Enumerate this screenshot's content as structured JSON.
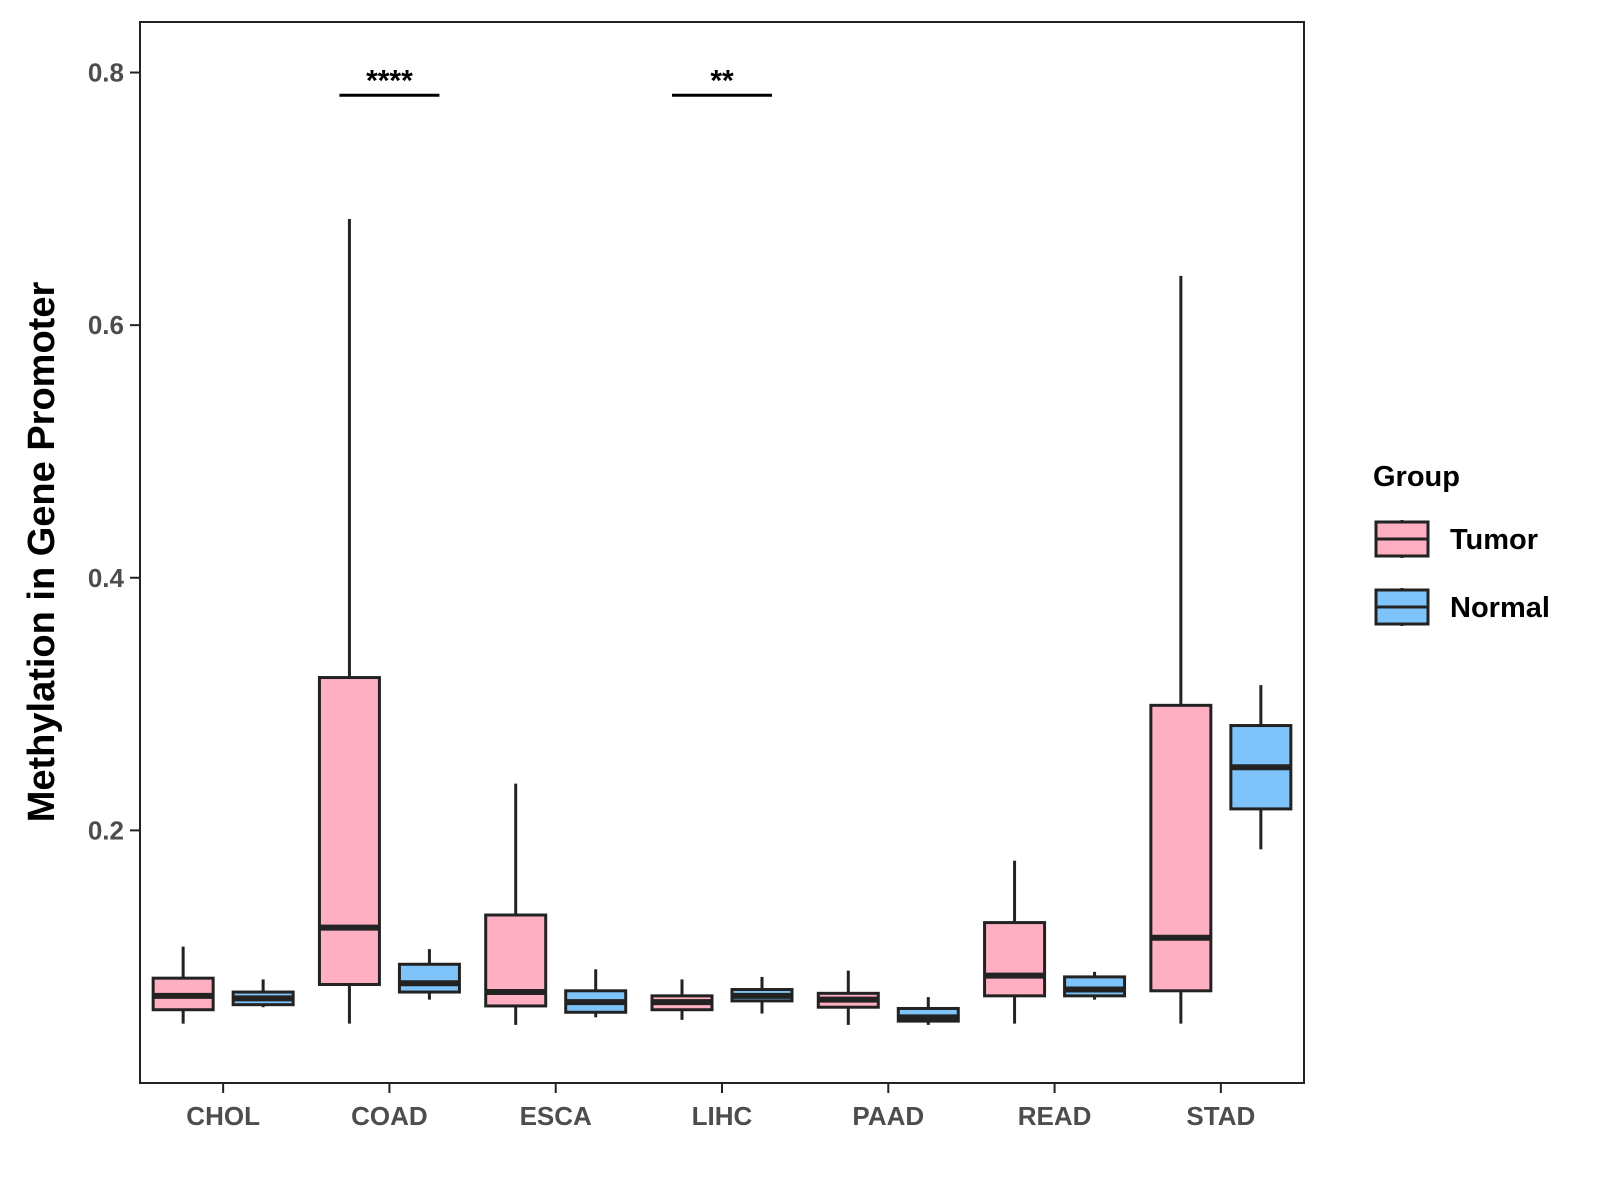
{
  "chart_data": {
    "type": "boxplot",
    "title": "",
    "xlabel": "",
    "ylabel": "Methylation in Gene Promoter",
    "ylim": [
      0.0,
      0.84
    ],
    "yticks": [
      0.2,
      0.4,
      0.6,
      0.8
    ],
    "ytick_labels": [
      "0.2",
      "0.4",
      "0.6",
      "0.8"
    ],
    "grid": false,
    "legend_position": "right",
    "legend": {
      "title": "Group",
      "entries": [
        {
          "label": "Tumor",
          "color": "#FFAFC2"
        },
        {
          "label": "Normal",
          "color": "#7EC4FA"
        }
      ]
    },
    "categories": [
      "CHOL",
      "COAD",
      "ESCA",
      "LIHC",
      "PAAD",
      "READ",
      "STAD"
    ],
    "series": [
      {
        "name": "Tumor",
        "color": "#FFAFC2",
        "boxes": [
          {
            "min": 0.047,
            "q1": 0.058,
            "median": 0.069,
            "q3": 0.083,
            "max": 0.108
          },
          {
            "min": 0.047,
            "q1": 0.078,
            "median": 0.123,
            "q3": 0.321,
            "max": 0.684
          },
          {
            "min": 0.046,
            "q1": 0.061,
            "median": 0.072,
            "q3": 0.133,
            "max": 0.237
          },
          {
            "min": 0.05,
            "q1": 0.058,
            "median": 0.064,
            "q3": 0.069,
            "max": 0.082
          },
          {
            "min": 0.046,
            "q1": 0.06,
            "median": 0.066,
            "q3": 0.071,
            "max": 0.089
          },
          {
            "min": 0.047,
            "q1": 0.069,
            "median": 0.085,
            "q3": 0.127,
            "max": 0.176
          },
          {
            "min": 0.047,
            "q1": 0.073,
            "median": 0.115,
            "q3": 0.299,
            "max": 0.639
          }
        ]
      },
      {
        "name": "Normal",
        "color": "#7EC4FA",
        "boxes": [
          {
            "min": 0.06,
            "q1": 0.062,
            "median": 0.067,
            "q3": 0.072,
            "max": 0.082
          },
          {
            "min": 0.066,
            "q1": 0.072,
            "median": 0.079,
            "q3": 0.094,
            "max": 0.106
          },
          {
            "min": 0.052,
            "q1": 0.056,
            "median": 0.064,
            "q3": 0.073,
            "max": 0.09
          },
          {
            "min": 0.055,
            "q1": 0.065,
            "median": 0.069,
            "q3": 0.074,
            "max": 0.084
          },
          {
            "min": 0.046,
            "q1": 0.049,
            "median": 0.052,
            "q3": 0.059,
            "max": 0.068
          },
          {
            "min": 0.066,
            "q1": 0.069,
            "median": 0.074,
            "q3": 0.084,
            "max": 0.088
          },
          {
            "min": 0.185,
            "q1": 0.217,
            "median": 0.25,
            "q3": 0.283,
            "max": 0.315
          }
        ]
      }
    ],
    "annotations": [
      {
        "category": "COAD",
        "label": "****",
        "y": 0.782
      },
      {
        "category": "LIHC",
        "label": "**",
        "y": 0.782
      }
    ]
  }
}
